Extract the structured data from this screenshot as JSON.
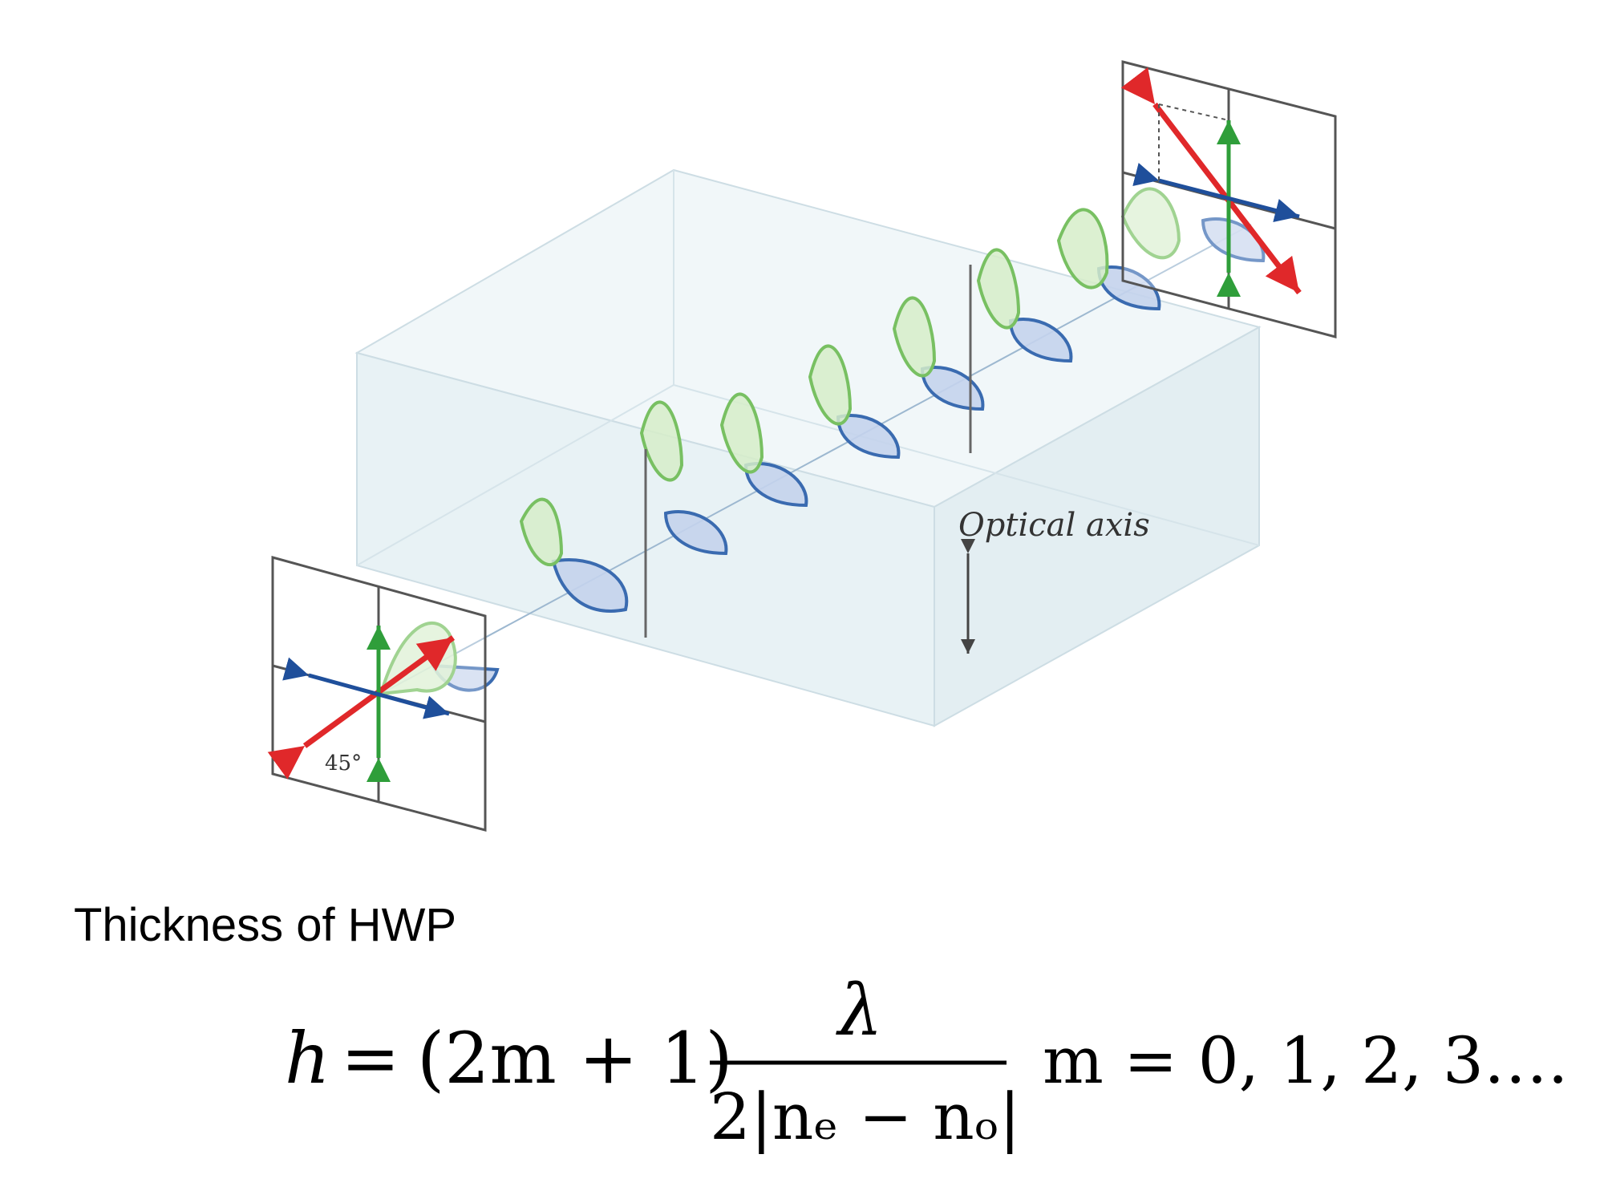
{
  "diagram": {
    "optical_axis_label": "Optical axis",
    "angle_label": "45°",
    "colors": {
      "wave_green": "#7cc46a",
      "wave_green_fill": "#cfe9c1",
      "wave_blue": "#3a6bb0",
      "wave_blue_fill": "#c4d3ec",
      "arrow_red": "#e0282a",
      "arrow_green": "#2f9e3a",
      "arrow_blue": "#1f4f9b",
      "crystal_edge": "#c9dbe3",
      "crystal_fill": "#eaf3f6"
    }
  },
  "caption": {
    "heading": "Thickness of HWP"
  },
  "equation": {
    "lhs": "h",
    "equals": "=",
    "factor": "(2m + 1)",
    "numerator": "λ",
    "denominator": "2|nₑ − nₒ|",
    "condition": "m = 0, 1, 2, 3…."
  }
}
